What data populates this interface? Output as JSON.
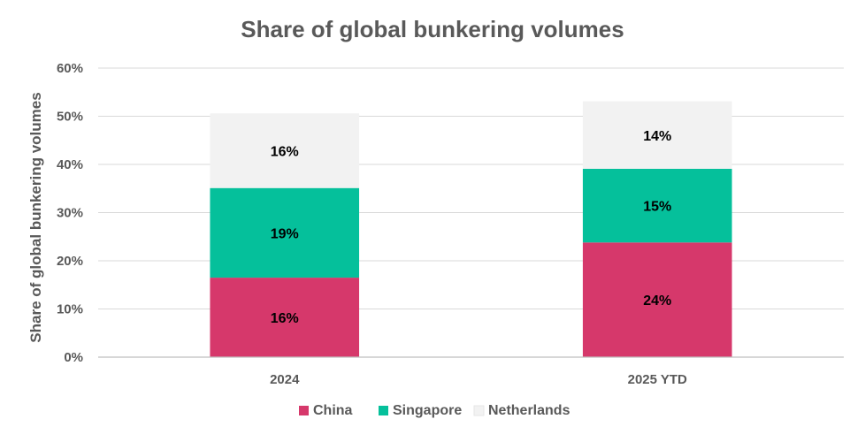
{
  "chart_data": {
    "type": "bar",
    "stacked": true,
    "title": "Share of global bunkering volumes",
    "ylabel": "Share of global bunkering volumes",
    "xlabel": "",
    "categories": [
      "2024",
      "2025 YTD"
    ],
    "ylim": [
      0,
      60
    ],
    "yticks": [
      0,
      10,
      20,
      30,
      40,
      50,
      60
    ],
    "ytick_labels": [
      "0%",
      "10%",
      "20%",
      "30%",
      "40%",
      "50%",
      "60%"
    ],
    "grid": true,
    "legend_position": "bottom",
    "series": [
      {
        "name": "China",
        "color": "#d6386b",
        "values": [
          16.5,
          23.8
        ],
        "labels": [
          "16%",
          "24%"
        ]
      },
      {
        "name": "Singapore",
        "color": "#05c09b",
        "values": [
          18.6,
          15.3
        ],
        "labels": [
          "19%",
          "15%"
        ]
      },
      {
        "name": "Netherlands",
        "color": "#f2f2f2",
        "values": [
          15.5,
          14.0
        ],
        "labels": [
          "16%",
          "14%"
        ]
      }
    ]
  }
}
